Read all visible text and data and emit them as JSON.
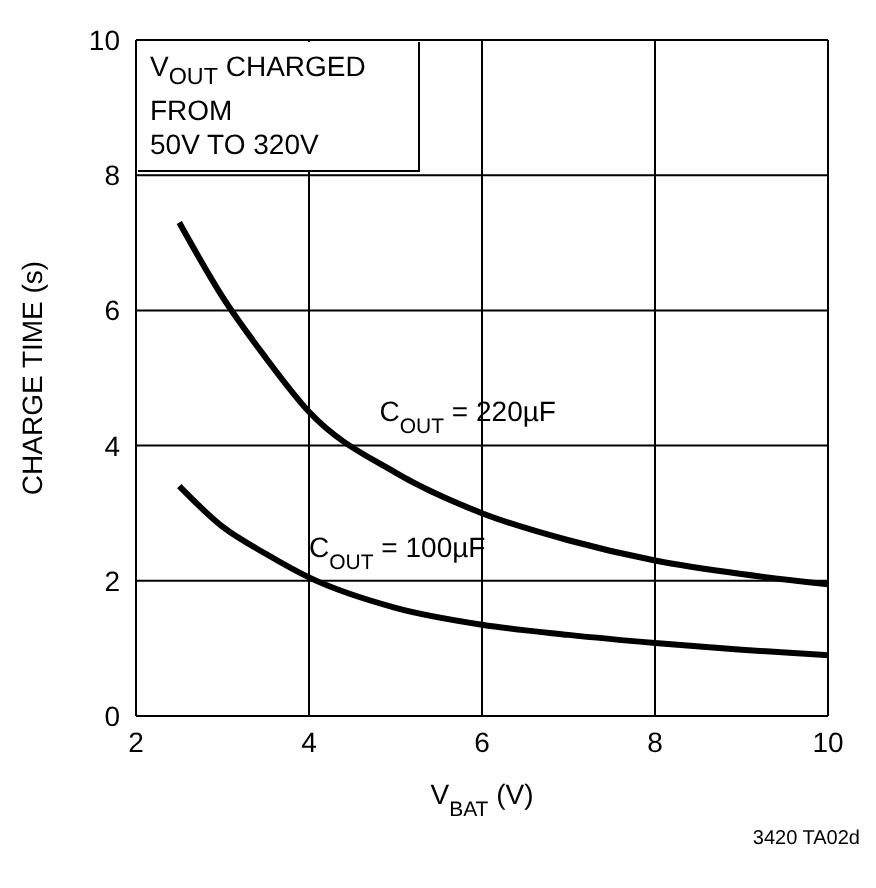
{
  "chart_data": {
    "type": "line",
    "xlabel": "V$_{BAT}$ (V)",
    "ylabel": "CHARGE TIME (s)",
    "x": [
      2.5,
      3,
      3.5,
      4,
      5,
      6,
      7,
      8,
      9,
      10
    ],
    "series": [
      {
        "name": "C$_{OUT}$ = 220µF",
        "color": "#000000",
        "values": [
          7.3,
          6.2,
          5.3,
          4.5,
          3.6,
          3.0,
          2.6,
          2.3,
          2.1,
          1.95
        ]
      },
      {
        "name": "C$_{OUT}$ = 100µF",
        "color": "#000000",
        "values": [
          3.4,
          2.8,
          2.4,
          2.05,
          1.6,
          1.35,
          1.2,
          1.08,
          0.98,
          0.9
        ]
      }
    ],
    "xlim": [
      2,
      10
    ],
    "xticks": [
      2,
      4,
      6,
      8,
      10
    ],
    "ylim": [
      0,
      10
    ],
    "yticks": [
      0,
      2,
      4,
      6,
      8,
      10
    ],
    "grid": true,
    "legend": false,
    "marker": "none",
    "line_style": "solid",
    "annotations": [
      "V$_{OUT}$ CHARGED\nFROM\n50V TO 320V",
      "3420 TA02d"
    ]
  }
}
